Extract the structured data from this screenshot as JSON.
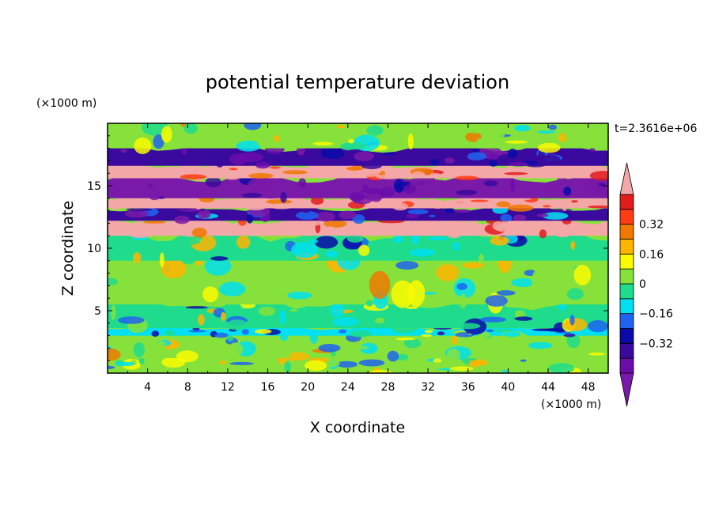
{
  "chart_data": {
    "type": "heatmap",
    "title": "potential temperature deviation",
    "xlabel": "X coordinate",
    "ylabel": "Z coordinate",
    "x_unit_label": "(×1000 m)",
    "y_unit_label": "(×1000 m)",
    "time_label": "t=2.3616e+06",
    "xlim": [
      0,
      50
    ],
    "ylim": [
      0,
      20
    ],
    "x_ticks": [
      4,
      8,
      12,
      16,
      20,
      24,
      28,
      32,
      36,
      40,
      44,
      48
    ],
    "y_ticks": [
      5,
      10,
      15
    ],
    "colorbar": {
      "levels": [
        -0.48,
        -0.4,
        -0.32,
        -0.24,
        -0.16,
        -0.08,
        0,
        0.08,
        0.16,
        0.24,
        0.32,
        0.4,
        0.48
      ],
      "tick_labels": [
        "0.32",
        "0.16",
        "0",
        "−0.16",
        "−0.32"
      ],
      "tick_values": [
        0.32,
        0.16,
        0,
        -0.16,
        -0.32
      ],
      "colors_low_to_high": [
        "#6a0dab",
        "#3a0a9e",
        "#0a0aa8",
        "#1e64f0",
        "#00e0f0",
        "#1edc8c",
        "#86e23a",
        "#fafa00",
        "#ffb400",
        "#f07800",
        "#ff3c14",
        "#e01c1c"
      ],
      "under_color": "#7a1aa8",
      "over_color": "#f4a7a7"
    },
    "bands": [
      {
        "z": [
          0.0,
          1.2
        ],
        "value": 0.02
      },
      {
        "z": [
          1.2,
          3.0
        ],
        "value": 0.05
      },
      {
        "z": [
          3.0,
          3.6
        ],
        "value": -0.1
      },
      {
        "z": [
          3.6,
          5.5
        ],
        "value": -0.02
      },
      {
        "z": [
          5.5,
          9.0
        ],
        "value": 0.03
      },
      {
        "z": [
          9.0,
          11.0
        ],
        "value": -0.04
      },
      {
        "z": [
          11.0,
          12.2
        ],
        "value": 0.5
      },
      {
        "z": [
          12.2,
          13.2
        ],
        "value": -0.35
      },
      {
        "z": [
          13.2,
          14.0
        ],
        "value": 0.5
      },
      {
        "z": [
          14.0,
          15.6
        ],
        "value": -0.5
      },
      {
        "z": [
          15.6,
          16.6
        ],
        "value": 0.5
      },
      {
        "z": [
          16.6,
          18.0
        ],
        "value": -0.36
      },
      {
        "z": [
          18.0,
          20.0
        ],
        "value": 0.02
      }
    ]
  }
}
